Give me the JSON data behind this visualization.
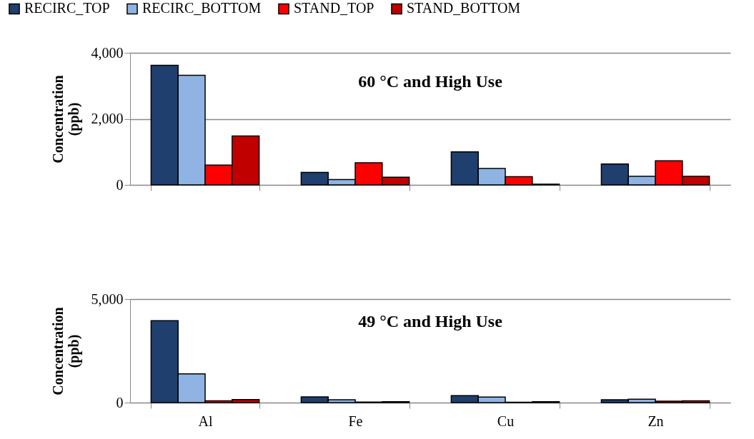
{
  "chart_data": [
    {
      "type": "bar",
      "title": "60 °C and High Use",
      "ylabel": "Concentration (ppb)",
      "categories": [
        null,
        null,
        null,
        null
      ],
      "series": [
        {
          "name": "RECIRC_TOP",
          "color": "#1f3f6e",
          "values": [
            3620,
            380,
            1000,
            630
          ]
        },
        {
          "name": "RECIRC_BOTTOM",
          "color": "#8fb4e3",
          "values": [
            3320,
            160,
            500,
            260
          ]
        },
        {
          "name": "STAND_TOP",
          "color": "#ff0000",
          "values": [
            600,
            670,
            250,
            730
          ]
        },
        {
          "name": "STAND_BOTTOM",
          "color": "#c00000",
          "values": [
            1480,
            230,
            20,
            260
          ]
        }
      ],
      "ylim": [
        0,
        4000
      ],
      "yticks": [
        0,
        {
          "value": 2000,
          "label": "2,000"
        },
        {
          "value": 4000,
          "label": "4,000"
        }
      ],
      "grid": "y",
      "legend": "top",
      "tick_labels": "y"
    },
    {
      "type": "bar",
      "title": "49 °C and High Use",
      "ylabel": "Concentration (ppb)",
      "categories": [
        "Al",
        "Fe",
        "Cu",
        "Zn"
      ],
      "series": [
        {
          "name": "RECIRC_TOP",
          "color": "#1f3f6e",
          "values": [
            3960,
            280,
            340,
            140
          ]
        },
        {
          "name": "RECIRC_BOTTOM",
          "color": "#8fb4e3",
          "values": [
            1390,
            140,
            270,
            160
          ]
        },
        {
          "name": "STAND_TOP",
          "color": "#ff0000",
          "values": [
            90,
            30,
            20,
            70
          ]
        },
        {
          "name": "STAND_BOTTOM",
          "color": "#c00000",
          "values": [
            150,
            40,
            40,
            90
          ]
        }
      ],
      "ylim": [
        0,
        5000
      ],
      "yticks": [
        0,
        {
          "value": 5000,
          "label": "5,000"
        }
      ],
      "grid": "y"
    }
  ]
}
